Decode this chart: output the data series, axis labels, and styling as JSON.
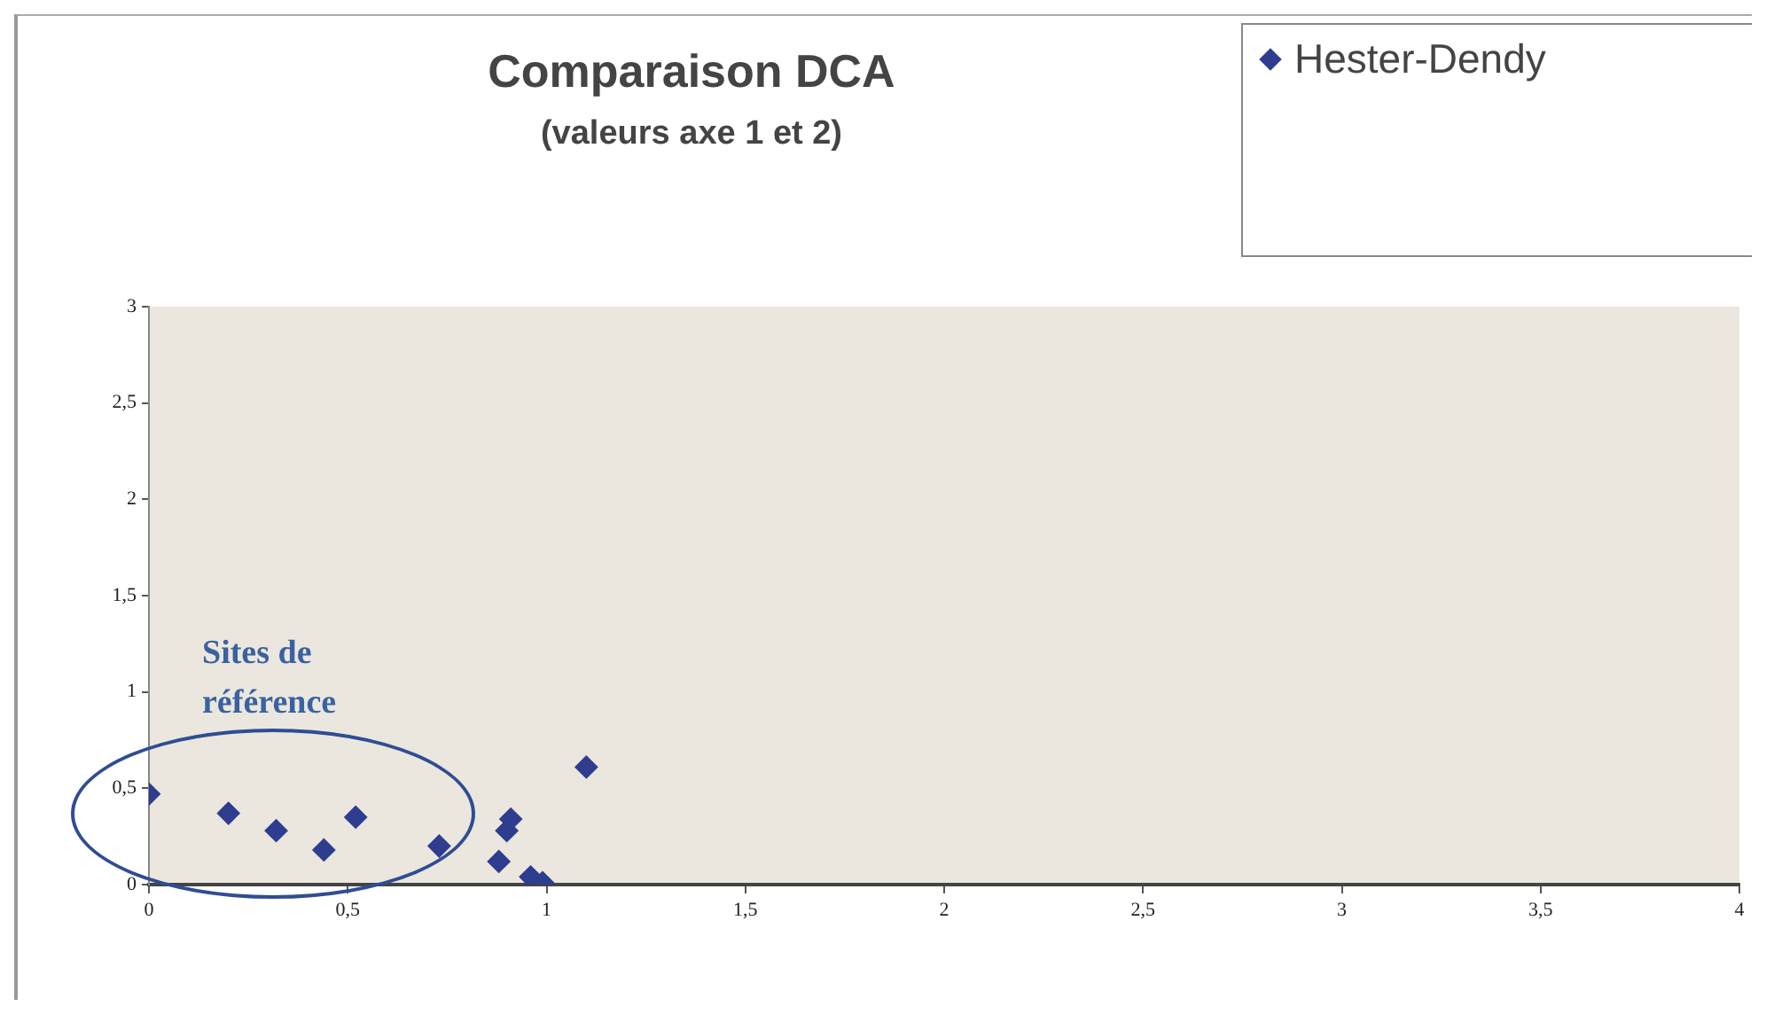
{
  "chart_data": {
    "type": "scatter",
    "title": "Comparaison DCA",
    "subtitle": "(valeurs axe 1 et 2)",
    "annotations": [
      "Sites de référence"
    ],
    "series": [
      {
        "name": "Hester-Dendy",
        "color": "#2e3d8f",
        "x": [
          0,
          0.2,
          0.32,
          0.44,
          0.52,
          0.73,
          0.88,
          0.9,
          0.91,
          0.96,
          0.99,
          1.1
        ],
        "values": [
          0.47,
          0.37,
          0.28,
          0.18,
          0.35,
          0.2,
          0.12,
          0.28,
          0.34,
          0.04,
          0.01,
          0.61
        ]
      }
    ],
    "xlim": [
      0,
      4
    ],
    "xticks": [
      0,
      {
        "value": 0.5,
        "label": "0,5"
      },
      1,
      {
        "value": 1.5,
        "label": "1,5"
      },
      2,
      {
        "value": 2.5,
        "label": "2,5"
      },
      3,
      {
        "value": 3.5,
        "label": "3,5"
      },
      4
    ],
    "ylim": [
      0,
      3
    ],
    "yticks": [
      0,
      {
        "value": 0.5,
        "label": "0,5"
      },
      1,
      {
        "value": 1.5,
        "label": "1,5"
      },
      2,
      {
        "value": 2.5,
        "label": "2,5"
      },
      3
    ],
    "legend": "top right",
    "marker": "diamond"
  }
}
